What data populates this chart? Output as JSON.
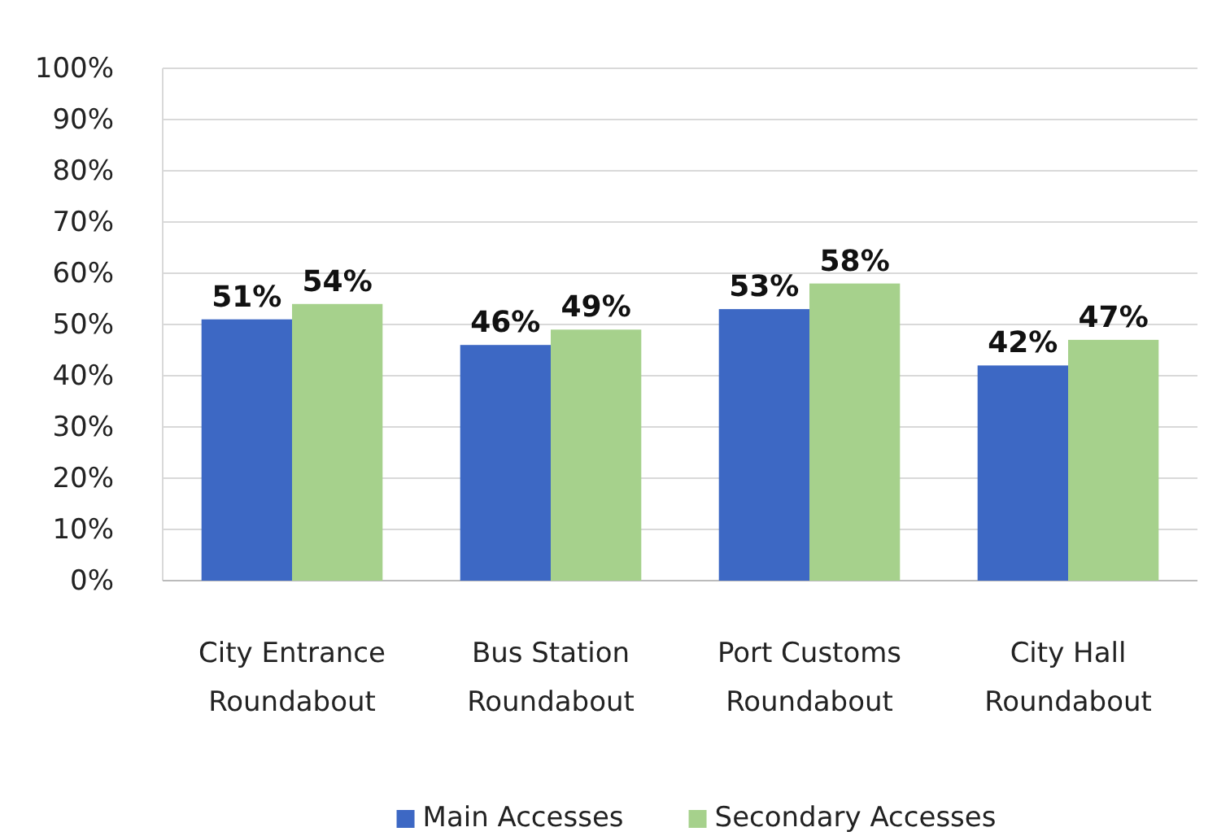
{
  "chart_data": {
    "type": "bar",
    "categories": [
      "City Entrance Roundabout",
      "Bus Station Roundabout",
      "Port Customs Roundabout",
      "City Hall Roundabout"
    ],
    "series": [
      {
        "name": "Main Accesses",
        "color": "#3d68c4",
        "values": [
          51,
          46,
          53,
          42
        ],
        "value_labels": [
          "51%",
          "46%",
          "53%",
          "42%"
        ]
      },
      {
        "name": "Secondary Accesses",
        "color": "#a6d18c",
        "values": [
          54,
          49,
          58,
          47
        ],
        "value_labels": [
          "54%",
          "49%",
          "58%",
          "47%"
        ]
      }
    ],
    "ylim": [
      0,
      100
    ],
    "yticks": [
      {
        "value": 0,
        "label": "0%"
      },
      {
        "value": 10,
        "label": "10%"
      },
      {
        "value": 20,
        "label": "20%"
      },
      {
        "value": 30,
        "label": "30%"
      },
      {
        "value": 40,
        "label": "40%"
      },
      {
        "value": 50,
        "label": "50%"
      },
      {
        "value": 60,
        "label": "60%"
      },
      {
        "value": 70,
        "label": "70%"
      },
      {
        "value": 80,
        "label": "80%"
      },
      {
        "value": 90,
        "label": "90%"
      },
      {
        "value": 100,
        "label": "100%"
      }
    ],
    "grid": "y",
    "legend": "bottom"
  }
}
